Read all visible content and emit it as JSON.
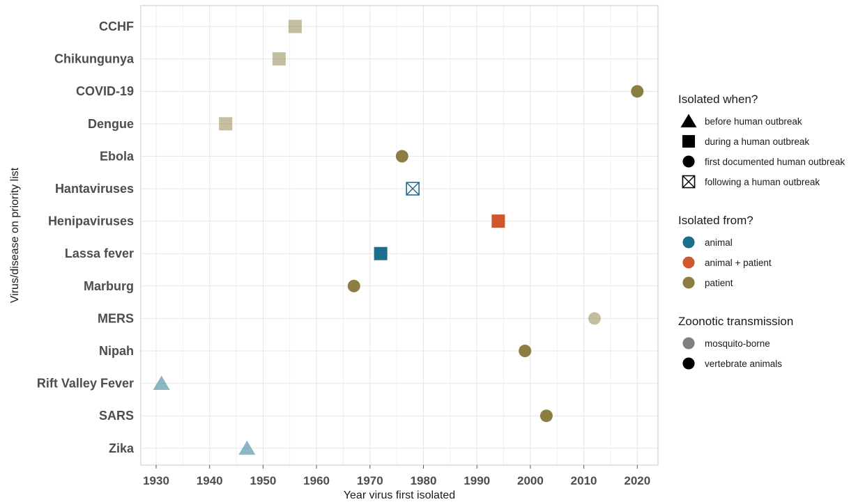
{
  "chart_data": {
    "type": "scatter",
    "xlabel": "Year virus first isolated",
    "ylabel": "Virus/disease on priority list",
    "xlim": [
      1927,
      2024
    ],
    "xticks": [
      1930,
      1940,
      1950,
      1960,
      1970,
      1980,
      1990,
      2000,
      2010,
      2020
    ],
    "grid": true,
    "legend_position": "right",
    "categories": [
      "CCHF",
      "Chikungunya",
      "COVID-19",
      "Dengue",
      "Ebola",
      "Hantaviruses",
      "Henipaviruses",
      "Lassa fever",
      "Marburg",
      "MERS",
      "Nipah",
      "Rift Valley Fever",
      "SARS",
      "Zika"
    ],
    "points": [
      {
        "category": "CCHF",
        "year": 1956,
        "isolated_when": "during a human outbreak",
        "isolated_from": "patient",
        "transmission": "mosquito-borne"
      },
      {
        "category": "Chikungunya",
        "year": 1953,
        "isolated_when": "during a human outbreak",
        "isolated_from": "patient",
        "transmission": "mosquito-borne"
      },
      {
        "category": "COVID-19",
        "year": 2020,
        "isolated_when": "first documented human outbreak",
        "isolated_from": "patient",
        "transmission": "vertebrate animals"
      },
      {
        "category": "Dengue",
        "year": 1943,
        "isolated_when": "during a human outbreak",
        "isolated_from": "patient",
        "transmission": "mosquito-borne"
      },
      {
        "category": "Ebola",
        "year": 1976,
        "isolated_when": "first documented human outbreak",
        "isolated_from": "patient",
        "transmission": "vertebrate animals"
      },
      {
        "category": "Hantaviruses",
        "year": 1978,
        "isolated_when": "following a human outbreak",
        "isolated_from": "animal",
        "transmission": "vertebrate animals"
      },
      {
        "category": "Henipaviruses",
        "year": 1994,
        "isolated_when": "during a human outbreak",
        "isolated_from": "animal + patient",
        "transmission": "vertebrate animals"
      },
      {
        "category": "Lassa fever",
        "year": 1972,
        "isolated_when": "during a human outbreak",
        "isolated_from": "animal",
        "transmission": "vertebrate animals"
      },
      {
        "category": "Marburg",
        "year": 1967,
        "isolated_when": "first documented human outbreak",
        "isolated_from": "patient",
        "transmission": "vertebrate animals"
      },
      {
        "category": "MERS",
        "year": 2012,
        "isolated_when": "first documented human outbreak",
        "isolated_from": "patient",
        "transmission": "mosquito-borne"
      },
      {
        "category": "Nipah",
        "year": 1999,
        "isolated_when": "first documented human outbreak",
        "isolated_from": "patient",
        "transmission": "vertebrate animals"
      },
      {
        "category": "Rift Valley Fever",
        "year": 1931,
        "isolated_when": "before human outbreak",
        "isolated_from": "animal",
        "transmission": "mosquito-borne"
      },
      {
        "category": "SARS",
        "year": 2003,
        "isolated_when": "first documented human outbreak",
        "isolated_from": "patient",
        "transmission": "vertebrate animals"
      },
      {
        "category": "Zika",
        "year": 1947,
        "isolated_when": "before human outbreak",
        "isolated_from": "animal",
        "transmission": "mosquito-borne"
      }
    ],
    "legends": [
      {
        "title": "Isolated when?",
        "items": [
          {
            "label": "before human outbreak",
            "shape": "triangle"
          },
          {
            "label": "during a human outbreak",
            "shape": "square"
          },
          {
            "label": "first documented human outbreak",
            "shape": "circle"
          },
          {
            "label": "following a human outbreak",
            "shape": "boxcross"
          }
        ]
      },
      {
        "title": "Isolated from?",
        "items": [
          {
            "label": "animal",
            "color": "#1b6f8c"
          },
          {
            "label": "animal + patient",
            "color": "#d0562b"
          },
          {
            "label": "patient",
            "color": "#8c7d42"
          }
        ]
      },
      {
        "title": "Zoonotic transmission",
        "items": [
          {
            "label": "mosquito-borne",
            "opacity": 0.5
          },
          {
            "label": "vertebrate animals",
            "opacity": 1.0
          }
        ]
      }
    ]
  },
  "colors": {
    "animal": "#1b6f8c",
    "animal + patient": "#d0562b",
    "patient": "#8c7d42",
    "grid": "#e6e6e6",
    "panel_border": "#c8c8c8"
  },
  "shapes": {
    "before human outbreak": "triangle",
    "during a human outbreak": "square",
    "first documented human outbreak": "circle",
    "following a human outbreak": "boxcross"
  }
}
